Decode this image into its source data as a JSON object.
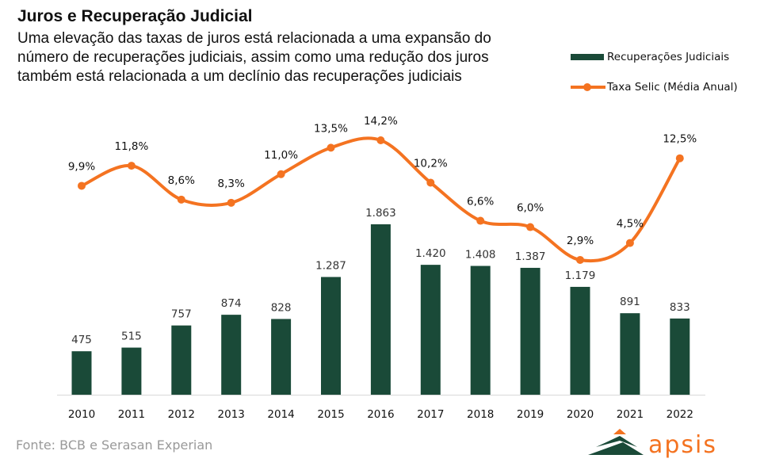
{
  "title": "Juros e Recuperação Judicial",
  "subtitle": "Uma elevação das taxas de juros está relacionada a uma expansão do número de recuperações judiciais, assim como uma redução dos juros também está relacionada a um declínio das recuperações judiciais",
  "source": "Fonte: BCB e Serasan Experian",
  "logo_text": "apsis",
  "colors": {
    "bars": "#1a4a38",
    "line": "#f47321"
  },
  "chart_data": {
    "type": "bar+line",
    "categories": [
      "2010",
      "2011",
      "2012",
      "2013",
      "2014",
      "2015",
      "2016",
      "2017",
      "2018",
      "2019",
      "2020",
      "2021",
      "2022"
    ],
    "series": [
      {
        "name": "Recuperações Judiciais",
        "type": "bar",
        "values": [
          475,
          515,
          757,
          874,
          828,
          1287,
          1863,
          1420,
          1408,
          1387,
          1179,
          891,
          833
        ],
        "labels": [
          "475",
          "515",
          "757",
          "874",
          "828",
          "1.287",
          "1.863",
          "1.420",
          "1.408",
          "1.387",
          "1.179",
          "891",
          "833"
        ]
      },
      {
        "name": "Taxa Selic (Média Anual)",
        "type": "line",
        "smooth": true,
        "values": [
          9.9,
          11.8,
          8.6,
          8.3,
          11.0,
          13.5,
          14.2,
          10.2,
          6.6,
          6.0,
          2.9,
          4.5,
          12.5
        ],
        "labels": [
          "9,9%",
          "11,8%",
          "8,6%",
          "8,3%",
          "11,0%",
          "13,5%",
          "14,2%",
          "10,2%",
          "6,6%",
          "6,0%",
          "2,9%",
          "4,5%",
          "12,5%"
        ]
      }
    ],
    "legend": "right",
    "grid": false
  }
}
